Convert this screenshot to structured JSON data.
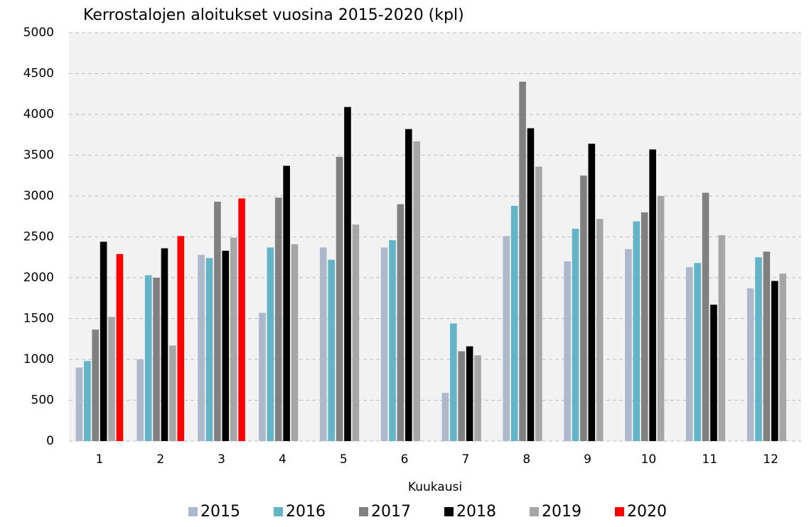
{
  "chart_data": {
    "type": "bar",
    "title": "Kerrostalojen aloitukset vuosina 2015-2020 (kpl)",
    "x_label": "Kuukausi",
    "categories": [
      "1",
      "2",
      "3",
      "4",
      "5",
      "6",
      "7",
      "8",
      "9",
      "10",
      "11",
      "12"
    ],
    "series": [
      {
        "name": "2015",
        "color": "#adb9ca",
        "values": [
          900,
          1000,
          2280,
          1570,
          2370,
          2370,
          590,
          2510,
          2200,
          2350,
          2130,
          1870
        ]
      },
      {
        "name": "2016",
        "color": "#64b4c8",
        "values": [
          980,
          2030,
          2240,
          2370,
          2220,
          2460,
          1440,
          2880,
          2600,
          2690,
          2180,
          2250
        ]
      },
      {
        "name": "2017",
        "color": "#808080",
        "values": [
          1365,
          2000,
          2930,
          2980,
          3480,
          2900,
          1100,
          4400,
          3250,
          2800,
          3040,
          2320
        ]
      },
      {
        "name": "2018",
        "color": "#000000",
        "values": [
          2440,
          2360,
          2330,
          3370,
          4090,
          3820,
          1160,
          3830,
          3640,
          3570,
          1670,
          1960
        ]
      },
      {
        "name": "2019",
        "color": "#a6a6a6",
        "values": [
          1520,
          1170,
          2490,
          2410,
          2650,
          3670,
          1050,
          3360,
          2720,
          3000,
          2520,
          2050
        ]
      },
      {
        "name": "2020",
        "color": "#ff0000",
        "values": [
          2290,
          2510,
          2970,
          null,
          null,
          null,
          null,
          null,
          null,
          null,
          null,
          null
        ]
      }
    ],
    "ylim": [
      0,
      5000
    ],
    "yticks": [
      0,
      500,
      1000,
      1500,
      2000,
      2500,
      3000,
      3500,
      4000,
      4500,
      5000
    ],
    "grid": true,
    "legend": "bottom"
  }
}
